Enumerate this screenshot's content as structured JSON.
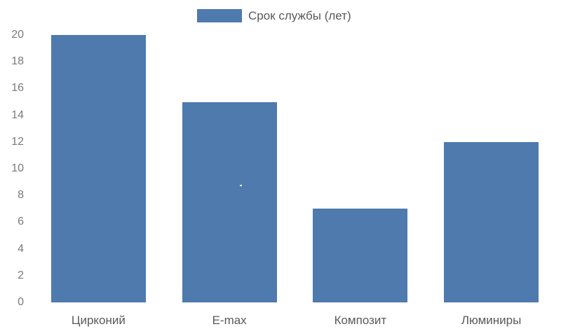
{
  "chart_data": {
    "type": "bar",
    "title": "",
    "legend": "Срок службы (лет)",
    "legend_position": "top",
    "categories": [
      "Цирконий",
      "E-max",
      "Композит",
      "Люминиры"
    ],
    "values": [
      20,
      15,
      7,
      12
    ],
    "xlabel": "",
    "ylabel": "",
    "ylim": [
      0,
      20
    ],
    "yticks": [
      0,
      2,
      4,
      6,
      8,
      10,
      12,
      14,
      16,
      18,
      20
    ],
    "grid": false
  },
  "colors": {
    "bar": "#4E7AAD",
    "y_tick_text": "#7A7A7A",
    "category_text": "#595959",
    "legend_text": "#595959",
    "background": "#FFFFFF"
  }
}
